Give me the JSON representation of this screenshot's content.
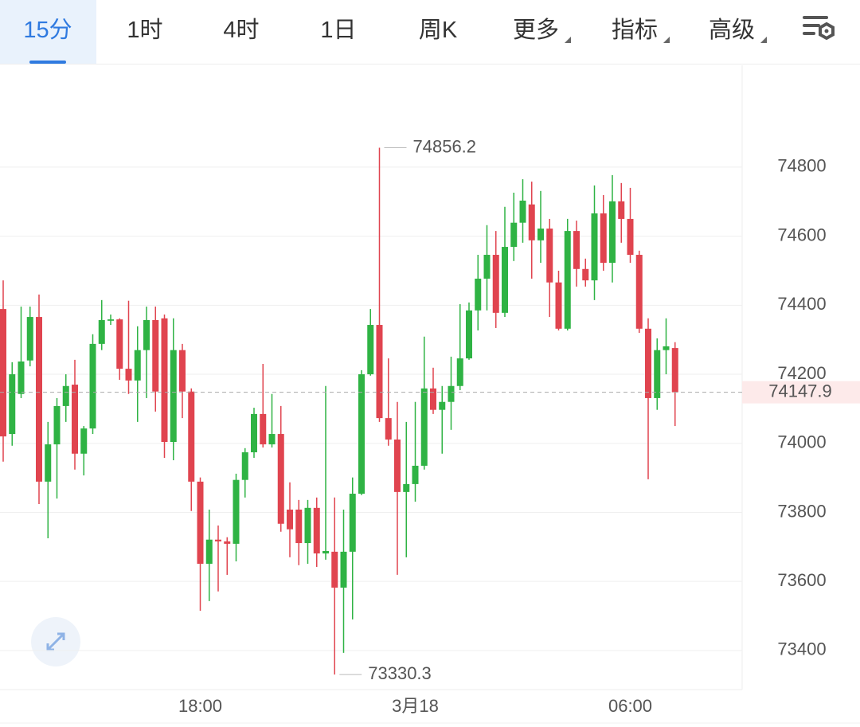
{
  "toolbar": {
    "tabs": [
      "15分",
      "1时",
      "4时",
      "1日",
      "周K",
      "更多",
      "指标",
      "高级"
    ],
    "selected": 0,
    "dropdown": [
      5,
      6,
      7
    ]
  },
  "chart_data": {
    "type": "candlestick",
    "categories": [
      null,
      null,
      null,
      null,
      null,
      null,
      null,
      null,
      null,
      null,
      null,
      null,
      null,
      null,
      null,
      null,
      null,
      null,
      null,
      null,
      null,
      null,
      "18:00",
      null,
      null,
      null,
      null,
      null,
      null,
      null,
      null,
      null,
      null,
      null,
      null,
      null,
      null,
      null,
      null,
      null,
      null,
      null,
      null,
      null,
      null,
      null,
      "3月18",
      null,
      null,
      null,
      null,
      null,
      null,
      null,
      null,
      null,
      null,
      null,
      null,
      null,
      null,
      null,
      null,
      null,
      null,
      null,
      null,
      null,
      null,
      null,
      "06:00",
      null,
      null,
      null,
      null,
      null
    ],
    "open": [
      74389,
      74027,
      74143,
      74240,
      74366,
      73889,
      73997,
      74108,
      74170,
      73970,
      74043,
      74288,
      74355,
      74359,
      74216,
      74182,
      74270,
      74357,
      74362,
      74004,
      74270,
      74150,
      73889,
      73651,
      73721,
      73716,
      73709,
      73894,
      73974,
      74085,
      73997,
      74027,
      73808,
      73808,
      73711,
      73813,
      73681,
      73686,
      73582,
      73686,
      73854,
      74200,
      74343,
      74073,
      74011,
      73859,
      73882,
      73935,
      74159,
      74097,
      74120,
      74166,
      74246,
      74385,
      74477,
      74546,
      74378,
      74569,
      74639,
      74692,
      74588,
      74622,
      74466,
      74332,
      74615,
      74505,
      74472,
      74666,
      74523,
      74701,
      74650,
      74546,
      74332,
      74131,
      74270,
      74276
    ],
    "high": [
      74472,
      74235,
      74396,
      74396,
      74431,
      74062,
      74131,
      74200,
      74242,
      74050,
      74316,
      74415,
      74373,
      74362,
      74413,
      74339,
      74396,
      74396,
      74373,
      74362,
      74288,
      74159,
      73901,
      73808,
      73762,
      73728,
      73912,
      73986,
      74103,
      74230,
      74143,
      74108,
      73887,
      73836,
      73836,
      73843,
      74166,
      73843,
      73808,
      73901,
      74212,
      74389,
      74856.2,
      74246,
      74120,
      74062,
      74120,
      74309,
      74219,
      74166,
      74251,
      74403,
      74408,
      74546,
      74632,
      74615,
      74685,
      74726,
      74765,
      74758,
      74731,
      74650,
      74500,
      74650,
      74645,
      74535,
      74747,
      74719,
      74777,
      74754,
      74740,
      74558,
      74362,
      74304,
      74362,
      74293
    ],
    "low": [
      73947,
      73993,
      74131,
      74223,
      73824,
      73725,
      73840,
      74062,
      73924,
      73907,
      74027,
      74270,
      74343,
      74184,
      74143,
      74062,
      74131,
      74092,
      73958,
      73951,
      74073,
      73804,
      73515,
      73543,
      73571,
      73619,
      73658,
      73843,
      73958,
      73988,
      73988,
      73744,
      73670,
      73647,
      73651,
      73642,
      73663,
      73330.3,
      73393,
      73490,
      73850,
      74196,
      74062,
      73993,
      73619,
      73670,
      73831,
      73924,
      74085,
      73970,
      74039,
      74154,
      74242,
      74327,
      74385,
      74334,
      74366,
      74528,
      74581,
      74477,
      74523,
      74366,
      74327,
      74327,
      74454,
      74454,
      74415,
      74500,
      74466,
      74581,
      74523,
      74320,
      73896,
      74097,
      74200,
      74050
    ],
    "close": [
      74020,
      74200,
      74237,
      74366,
      73889,
      73997,
      74108,
      74166,
      73970,
      74043,
      74288,
      74357,
      74359,
      74216,
      74182,
      74270,
      74357,
      74150,
      74004,
      74270,
      74150,
      73889,
      73651,
      73721,
      73716,
      73709,
      73894,
      73974,
      74085,
      73997,
      74027,
      73767,
      73751,
      73711,
      73813,
      73681,
      73688,
      73582,
      73686,
      73854,
      74200,
      74343,
      74073,
      74011,
      73859,
      73882,
      73935,
      74159,
      74097,
      74120,
      74166,
      74246,
      74385,
      74477,
      74546,
      74378,
      74569,
      74639,
      74703,
      74588,
      74622,
      74466,
      74332,
      74615,
      74505,
      74472,
      74666,
      74523,
      74701,
      74650,
      74546,
      74332,
      74131,
      74270,
      74281,
      74147.9
    ],
    "up_color": "#2fb344",
    "down_color": "#e0444f",
    "ylim": [
      73289,
      75095
    ],
    "yticks": [
      73400,
      73600,
      73800,
      74000,
      74200,
      74400,
      74600,
      74800
    ],
    "grid": true
  }
}
